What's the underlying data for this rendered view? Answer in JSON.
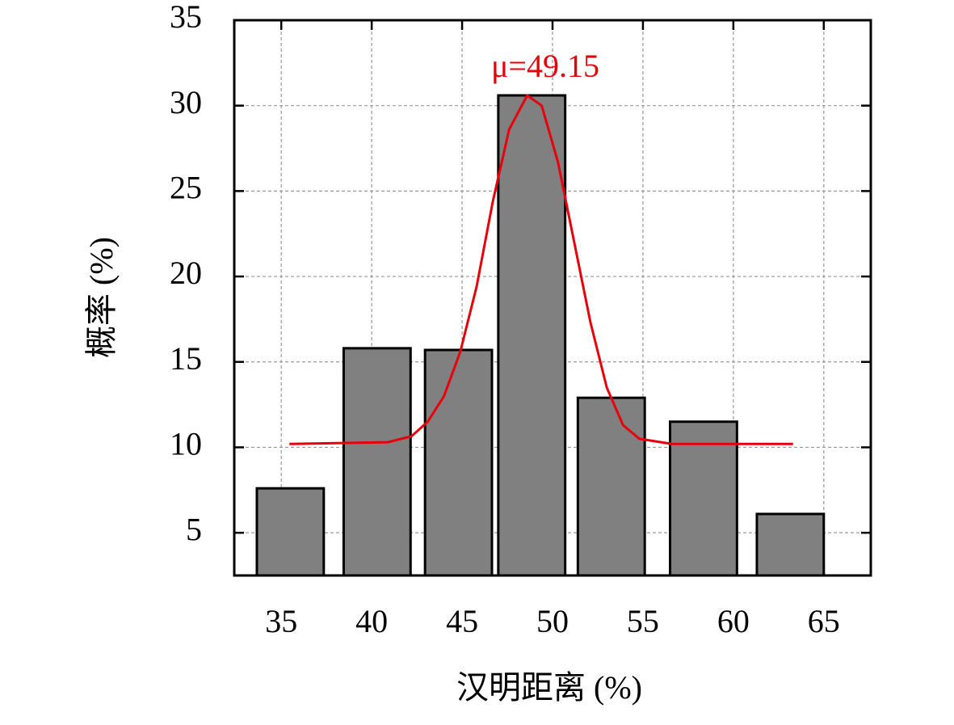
{
  "chart_data": {
    "type": "bar",
    "x_label": "汉明距离 (%)",
    "y_label": "概率 (%)",
    "annotation": "μ=49.15",
    "x": [
      35.5,
      40.3,
      44.8,
      48.85,
      53.25,
      58.35,
      63.15
    ],
    "bar_width": 3.7,
    "values": [
      7.6,
      15.8,
      15.7,
      30.6,
      12.9,
      11.5,
      6.1
    ],
    "color": "#808080",
    "fit": {
      "type": "line",
      "color": "#e8000b",
      "x": [
        35.45,
        40.9,
        42.2,
        43.1,
        44.0,
        44.9,
        45.8,
        46.7,
        47.6,
        48.6,
        49.4,
        50.3,
        51.2,
        52.1,
        53.0,
        53.9,
        54.8,
        56.6,
        63.3
      ],
      "values": [
        10.2,
        10.3,
        10.65,
        11.5,
        13,
        15.6,
        19.4,
        24.4,
        28.6,
        30.6,
        30,
        26.7,
        22,
        17.3,
        13.5,
        11.3,
        10.5,
        10.2,
        10.2
      ]
    },
    "xlim": [
      32.4,
      67.6
    ],
    "ylim": [
      2.5,
      35
    ],
    "xticks": [
      35,
      40,
      45,
      50,
      55,
      60,
      65
    ],
    "yticks": [
      5,
      10,
      15,
      20,
      25,
      30,
      35
    ],
    "grid": true
  }
}
